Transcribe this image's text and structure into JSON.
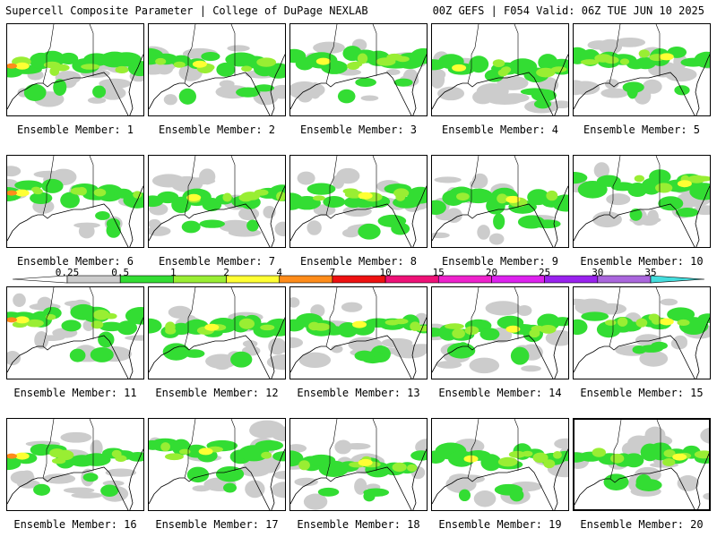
{
  "header": {
    "title": "Supercell Composite Parameter | College of DuPage NEXLAB",
    "run_info": "00Z GEFS | F054 Valid: 06Z TUE JUN 10 2025"
  },
  "panels": [
    {
      "label": "Ensemble Member: 1",
      "lon": 0.05,
      "lat": 0.6,
      "spread": 1.0
    },
    {
      "label": "Ensemble Member: 2",
      "lon": 0.35,
      "lat": 0.58,
      "spread": 0.95
    },
    {
      "label": "Ensemble Member: 3",
      "lon": 0.2,
      "lat": 0.55,
      "spread": 1.05
    },
    {
      "label": "Ensemble Member: 4",
      "lon": 0.15,
      "lat": 0.62,
      "spread": 0.9
    },
    {
      "label": "Ensemble Member: 5",
      "lon": 0.7,
      "lat": 0.5,
      "spread": 0.85
    },
    {
      "label": "Ensemble Member: 6",
      "lon": 0.05,
      "lat": 0.55,
      "spread": 1.0
    },
    {
      "label": "Ensemble Member: 7",
      "lon": 0.3,
      "lat": 0.6,
      "spread": 0.95
    },
    {
      "label": "Ensemble Member: 8",
      "lon": 0.55,
      "lat": 0.58,
      "spread": 0.8
    },
    {
      "label": "Ensemble Member: 9",
      "lon": 0.6,
      "lat": 0.62,
      "spread": 0.8
    },
    {
      "label": "Ensemble Member: 10",
      "lon": 0.85,
      "lat": 0.45,
      "spread": 0.85
    },
    {
      "label": "Ensemble Member: 11",
      "lon": 0.05,
      "lat": 0.5,
      "spread": 1.0
    },
    {
      "label": "Ensemble Member: 12",
      "lon": 0.45,
      "lat": 0.58,
      "spread": 0.75
    },
    {
      "label": "Ensemble Member: 13",
      "lon": 0.5,
      "lat": 0.55,
      "spread": 1.0
    },
    {
      "label": "Ensemble Member: 14",
      "lon": 0.6,
      "lat": 0.6,
      "spread": 0.8
    },
    {
      "label": "Ensemble Member: 15",
      "lon": 0.7,
      "lat": 0.52,
      "spread": 0.9
    },
    {
      "label": "Ensemble Member: 16",
      "lon": 0.05,
      "lat": 0.55,
      "spread": 0.95
    },
    {
      "label": "Ensemble Member: 17",
      "lon": 0.4,
      "lat": 0.5,
      "spread": 1.0
    },
    {
      "label": "Ensemble Member: 18",
      "lon": 0.55,
      "lat": 0.62,
      "spread": 0.85
    },
    {
      "label": "Ensemble Member: 19",
      "lon": 0.25,
      "lat": 0.58,
      "spread": 0.95
    },
    {
      "label": "Ensemble Member: 20",
      "lon": 0.8,
      "lat": 0.55,
      "spread": 0.8,
      "selected": true
    }
  ],
  "legend": {
    "ticks": [
      "0.25",
      "0.5",
      "1",
      "2",
      "4",
      "7",
      "10",
      "15",
      "20",
      "25",
      "30",
      "35"
    ],
    "colors": [
      "#cccccc",
      "#33dd33",
      "#99ee33",
      "#ffff33",
      "#ff8c1a",
      "#ee1111",
      "#ee1177",
      "#ee22cc",
      "#dd22ee",
      "#9922ee",
      "#aa66dd",
      "#44dddd"
    ]
  },
  "palette": {
    "c025": "#cccccc",
    "c05": "#33dd33",
    "c1": "#99ee33",
    "c2": "#ffff33",
    "c4": "#ff8c1a"
  }
}
